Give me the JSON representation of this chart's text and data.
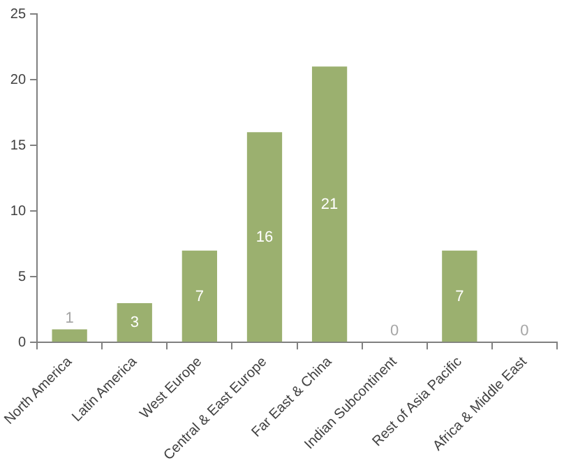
{
  "chart_data": {
    "type": "bar",
    "categories": [
      "North America",
      "Latin America",
      "West Europe",
      "Central & East Europe",
      "Far East & China",
      "Indian Subcontinent",
      "Rest of Asia Pacific",
      "Africa & Middle East"
    ],
    "values": [
      1,
      3,
      7,
      16,
      21,
      0,
      7,
      0
    ],
    "color": "#9bb06f",
    "ylim": [
      0,
      25
    ],
    "yticks": [
      0,
      5,
      10,
      15,
      20,
      25
    ],
    "grid": false,
    "data_labels": true
  }
}
